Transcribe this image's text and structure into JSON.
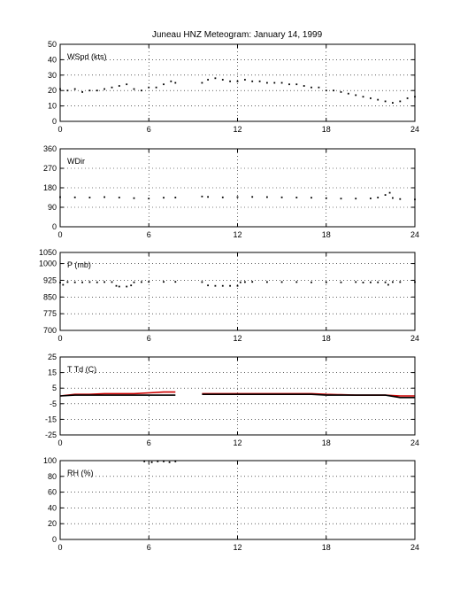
{
  "title": "Juneau HNZ Meteogram:    January 14, 1999",
  "chart_data": [
    {
      "type": "scatter",
      "label": "WSpd (kts)",
      "xlim": [
        0,
        24
      ],
      "ylim": [
        0,
        50
      ],
      "xticks": [
        0,
        6,
        12,
        18,
        24
      ],
      "yticks": [
        0,
        10,
        20,
        30,
        40,
        50
      ],
      "grid": true,
      "series": [
        {
          "color": "#000000",
          "segments": [
            {
              "x": [
                0,
                0.5,
                1,
                1.5,
                2,
                2.5,
                3,
                3.5,
                4,
                4.5,
                5,
                5.5,
                6,
                6.5,
                7,
                7.5,
                7.8
              ],
              "y": [
                21,
                20,
                21,
                19,
                20,
                20,
                21,
                22,
                23,
                24,
                21,
                20,
                22,
                22,
                24,
                26,
                25
              ]
            },
            {
              "x": [
                9.6,
                10,
                10.5,
                11,
                11.5,
                12,
                12.5,
                13,
                13.5,
                14,
                14.5,
                15,
                15.5,
                16,
                16.5,
                17,
                17.5,
                18,
                18.5,
                19,
                19.5,
                20,
                20.5,
                21,
                21.5,
                22,
                22.5,
                23,
                23.5,
                24
              ],
              "y": [
                25,
                27,
                28,
                27,
                26,
                26,
                27,
                26,
                26,
                25,
                25,
                25,
                24,
                24,
                23,
                22,
                22,
                20,
                20,
                19,
                18,
                17,
                16,
                15,
                14,
                13,
                12,
                13,
                15,
                16
              ]
            }
          ]
        }
      ]
    },
    {
      "type": "scatter",
      "label": "WDir",
      "xlim": [
        0,
        24
      ],
      "ylim": [
        0,
        360
      ],
      "xticks": [
        0,
        6,
        12,
        18,
        24
      ],
      "yticks": [
        0,
        90,
        180,
        270,
        360
      ],
      "grid": true,
      "series": [
        {
          "color": "#000000",
          "segments": [
            {
              "x": [
                0,
                1,
                2,
                3,
                4,
                5,
                6,
                7,
                7.8
              ],
              "y": [
                137,
                136,
                135,
                137,
                135,
                132,
                130,
                134,
                135
              ]
            },
            {
              "x": [
                9.6,
                10,
                11,
                12,
                13,
                14,
                15,
                16,
                17,
                18,
                19,
                20,
                21,
                21.5,
                22,
                22.3,
                22.5,
                23,
                24
              ],
              "y": [
                140,
                138,
                136,
                137,
                138,
                137,
                136,
                135,
                134,
                132,
                130,
                130,
                131,
                135,
                147,
                157,
                133,
                128,
                126
              ]
            }
          ]
        }
      ]
    },
    {
      "type": "scatter",
      "label": "P (mb)",
      "xlim": [
        0,
        24
      ],
      "ylim": [
        700,
        1050
      ],
      "xticks": [
        0,
        6,
        12,
        18,
        24
      ],
      "yticks": [
        700,
        775,
        850,
        925,
        1000,
        1050
      ],
      "grid": true,
      "series": [
        {
          "color": "#000000",
          "segments": [
            {
              "x": [
                0,
                0.2,
                0.5,
                1,
                1.5,
                2,
                2.5,
                3,
                3.5,
                3.8,
                4,
                4.5,
                4.8,
                5,
                5.5,
                6,
                7,
                7.8
              ],
              "y": [
                915,
                905,
                917,
                916,
                916,
                917,
                916,
                917,
                917,
                900,
                897,
                897,
                902,
                916,
                917,
                918,
                918,
                918
              ]
            },
            {
              "x": [
                9.6,
                10,
                10.5,
                11,
                11.5,
                12,
                12.2,
                12.5,
                13,
                14,
                15,
                16,
                17,
                18,
                19,
                20,
                20.5,
                21,
                21.5,
                22,
                22.2,
                22.5,
                23,
                24
              ],
              "y": [
                917,
                902,
                900,
                900,
                900,
                900,
                916,
                917,
                918,
                917,
                917,
                917,
                916,
                916,
                916,
                917,
                915,
                916,
                916,
                916,
                905,
                917,
                917,
                917
              ]
            }
          ]
        }
      ]
    },
    {
      "type": "line",
      "label": "T Td (C)",
      "xlim": [
        0,
        24
      ],
      "ylim": [
        -25,
        25
      ],
      "xticks": [
        0,
        6,
        12,
        18,
        24
      ],
      "yticks": [
        -25,
        -15,
        -5,
        5,
        15,
        25
      ],
      "grid": true,
      "series": [
        {
          "color": "#cc0000",
          "segments": [
            {
              "x": [
                0,
                1,
                2,
                3,
                4,
                5,
                6,
                7,
                7.8
              ],
              "y": [
                0,
                1,
                1,
                1.5,
                1.5,
                1.5,
                2,
                2.5,
                2.5
              ]
            },
            {
              "x": [
                9.6,
                11,
                12,
                13,
                14,
                15,
                16,
                17,
                18,
                19,
                20,
                21,
                22,
                23,
                24
              ],
              "y": [
                1.5,
                1.5,
                1.5,
                1.5,
                1.5,
                1.5,
                1.5,
                1.5,
                1,
                0.8,
                0.5,
                0.5,
                0.5,
                0,
                0
              ]
            }
          ]
        },
        {
          "color": "#000000",
          "segments": [
            {
              "x": [
                0,
                1,
                2,
                3,
                4,
                5,
                6,
                7,
                7.8
              ],
              "y": [
                0,
                0.5,
                0.5,
                0.5,
                0.5,
                0.5,
                0.5,
                0.5,
                0.5
              ]
            },
            {
              "x": [
                9.6,
                11,
                12,
                13,
                14,
                15,
                16,
                17,
                18,
                19,
                20,
                21,
                22,
                23,
                24
              ],
              "y": [
                1,
                1,
                1,
                1,
                1,
                1,
                1,
                1,
                0.5,
                0.5,
                0.5,
                0.5,
                0.5,
                -1,
                -1
              ]
            }
          ]
        }
      ]
    },
    {
      "type": "scatter",
      "label": "RH (%)",
      "xlim": [
        0,
        24
      ],
      "ylim": [
        0,
        100
      ],
      "xticks": [
        0,
        6,
        12,
        18,
        24
      ],
      "yticks": [
        0,
        20,
        40,
        60,
        80,
        100
      ],
      "grid": true,
      "series": [
        {
          "color": "#000000",
          "segments": [
            {
              "x": [
                5.7,
                6.2,
                6.6,
                7,
                7.4,
                7.8
              ],
              "y": [
                99,
                98,
                99,
                99,
                98,
                99
              ]
            }
          ]
        }
      ]
    }
  ]
}
